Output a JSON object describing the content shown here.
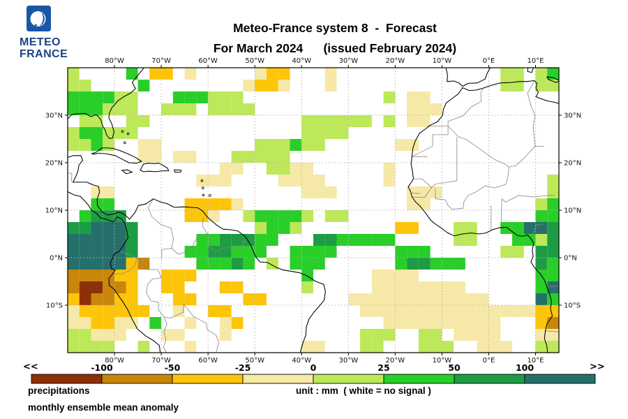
{
  "logo": {
    "text_line1": "METEO",
    "text_line2": "FRANCE"
  },
  "title": {
    "line1": "Meteo-France system 8  -  Forecast",
    "line2": "For March 2024      (issued February 2024)"
  },
  "map": {
    "domain": {
      "lon_min": -90,
      "lon_max": 15,
      "lat_min": -20,
      "lat_max": 40
    },
    "lon_ticks": [
      {
        "lon": -80,
        "label": "80°W"
      },
      {
        "lon": -70,
        "label": "70°W"
      },
      {
        "lon": -60,
        "label": "60°W"
      },
      {
        "lon": -50,
        "label": "50°W"
      },
      {
        "lon": -40,
        "label": "40°W"
      },
      {
        "lon": -30,
        "label": "30°W"
      },
      {
        "lon": -20,
        "label": "20°W"
      },
      {
        "lon": -10,
        "label": "10°W"
      },
      {
        "lon": 0,
        "label": "0°E"
      },
      {
        "lon": 10,
        "label": "10°E"
      }
    ],
    "lat_ticks": [
      {
        "lat": 30,
        "label": "30°N"
      },
      {
        "lat": 20,
        "label": "20°N"
      },
      {
        "lat": 10,
        "label": "10°N"
      },
      {
        "lat": 0,
        "label": "0°N"
      },
      {
        "lat": -10,
        "label": "10°S"
      }
    ],
    "anomaly_grid": {
      "cell_deg": 2.5,
      "cols": 42,
      "rows": 24,
      "class_meaning": {
        ".": "no signal (white)",
        "a": "-25 to 0 mm",
        "b": "-50 to -25 mm",
        "c": "-100 to -50 mm",
        "d": "below -100 mm",
        "1": "0 to 25 mm",
        "2": "25 to 50 mm",
        "3": "50 to 100 mm",
        "4": "above 100 mm"
      },
      "rows_data": [
        "1....2.bb.a.....abb...a..............11.12",
        "11....2........abba...a..............11.11",
        "222211...222111............1.aa...........",
        "222111..111.1111.............aaa..........",
        ".11..11.............111111.1.aa...........",
        "122111..............1111..................",
        "1121..aa........111211......aa............",
        "......aa.aa...11111.......................",
        ".............aa..11aa......a..............",
        "...........aaa....aaaa.....a.............1",
        "..aa................aaa......aaa.........1",
        "..22......bbbba..............aa.........12",
        ".2333.....bba..122221.11................22",
        "334443..........1221........bb...11..22443",
        "444443.....2233322...3322222.....11...2213",
        "444443....2233222..2222.....222......11.33",
        "44444bc....22232.1.222......233222......32",
        "ccccbb..bbb.........2.....aaaa..........22",
        "cddccb..bb...bb.....1.....aaaaaaaa......24",
        "bdccbb...bb....bb.......aaaaaaaaaaaa....42",
        "abbbbbb..a..bb...........aaaaaaaaaaaaaaabb",
        "aabbaa.2..a..ab............aaaaaaaaaa...bc",
        "11aaa...aa...a...........111..11.aaaa...aa",
        "1111..1...a.........aa...11...111..aaa..11"
      ]
    }
  },
  "palette": {
    "d": "#8D3007",
    "c": "#C8860B",
    "b": "#FDC509",
    "a": "#F6E8A6",
    "1": "#BCE85A",
    "2": "#29CE29",
    "3": "#1E9C45",
    "4": "#25706A"
  },
  "colorbar": {
    "left_arrow": "<<",
    "right_arrow": ">>",
    "segment_order": [
      "d",
      "c",
      "b",
      "a",
      "1",
      "2",
      "3",
      "4"
    ],
    "boundary_labels": [
      "-100",
      "-50",
      "-25",
      "0",
      "25",
      "50",
      "100"
    ]
  },
  "footer": {
    "variable": "precipitations",
    "description": "monthly ensemble mean anomaly",
    "unit_note": "unit : mm  ( white = no signal )"
  }
}
